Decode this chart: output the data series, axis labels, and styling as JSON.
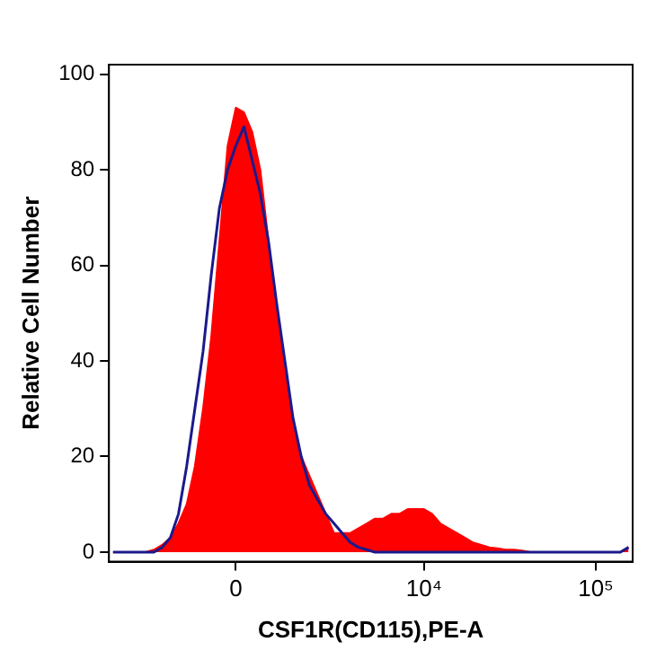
{
  "chart_data": {
    "type": "area",
    "xlabel": "CSF1R(CD115),PE-A",
    "ylabel": "Relative Cell Number",
    "categories": [
      null,
      null,
      null,
      null,
      null,
      null,
      null,
      null,
      null,
      null,
      null,
      null,
      null,
      null,
      null,
      "0",
      null,
      null,
      null,
      null,
      null,
      null,
      null,
      null,
      null,
      null,
      null,
      null,
      null,
      null,
      null,
      null,
      null,
      null,
      null,
      null,
      null,
      null,
      "10⁴",
      null,
      null,
      null,
      null,
      null,
      null,
      null,
      null,
      null,
      null,
      null,
      null,
      null,
      null,
      null,
      null,
      null,
      null,
      null,
      null,
      "10⁵",
      null,
      null,
      null,
      null
    ],
    "series": [
      {
        "color": "#ff0000",
        "values": [
          0,
          0,
          0,
          0,
          0,
          0.5,
          1.5,
          3,
          6,
          10,
          18,
          30,
          45,
          65,
          85,
          93,
          92,
          88,
          80,
          65,
          50,
          38,
          26,
          20,
          16,
          12,
          8,
          4,
          4,
          4,
          5,
          6,
          7,
          7,
          8,
          8,
          9,
          9,
          9,
          8,
          6,
          5,
          4,
          3,
          2,
          1.5,
          1,
          0.8,
          0.5,
          0.5,
          0.3,
          0,
          0,
          0,
          0,
          0,
          0,
          0,
          0,
          0,
          0,
          0,
          0,
          1
        ]
      },
      {
        "type": "line",
        "color": "#1a1a8c",
        "values": [
          0,
          0,
          0,
          0,
          0,
          0,
          1,
          3,
          8,
          18,
          30,
          42,
          58,
          72,
          80,
          85,
          89,
          82,
          75,
          65,
          52,
          40,
          28,
          20,
          14,
          11,
          8,
          6,
          4,
          2,
          1,
          0.5,
          0,
          0,
          0,
          0,
          0,
          0,
          0,
          0,
          0,
          0,
          0,
          0,
          0,
          0,
          0,
          0,
          0,
          0,
          0,
          0,
          0,
          0,
          0,
          0,
          0,
          0,
          0,
          0,
          0,
          0,
          0,
          1
        ]
      }
    ],
    "ylim": [
      -2,
      102
    ],
    "yticks": [
      0,
      20,
      40,
      60,
      80,
      100
    ],
    "grid": false,
    "legend": false,
    "marker": "none"
  }
}
